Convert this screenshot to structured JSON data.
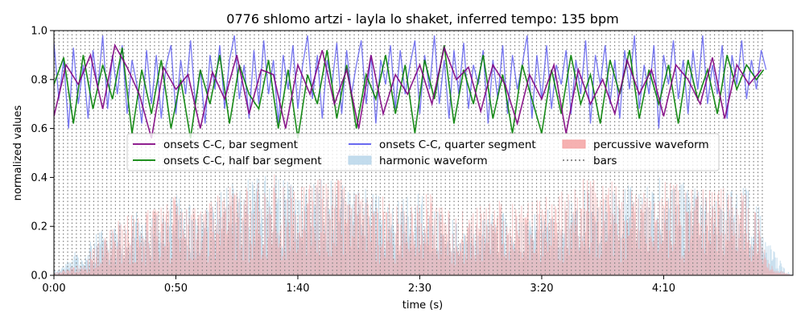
{
  "chart_data": {
    "type": "area",
    "title": "0776 shlomo artzi - layla lo shaket, inferred tempo: 135 bpm",
    "xlabel": "time (s)",
    "ylabel": "normalized values",
    "xlim": [
      0,
      303
    ],
    "ylim": [
      0,
      1.0
    ],
    "x_ticks": [
      0,
      50,
      100,
      150,
      200,
      250
    ],
    "x_tick_labels": [
      "0:00",
      "0:50",
      "1:40",
      "2:30",
      "3:20",
      "4:10"
    ],
    "y_ticks": [
      0.0,
      0.2,
      0.4,
      0.6,
      0.8,
      1.0
    ],
    "y_tick_labels": [
      "0.0",
      "0.2",
      "0.4",
      "0.6",
      "0.8",
      "1.0"
    ],
    "tempo_bpm": 135,
    "bar_duration_s": 1.78,
    "bars_range_s": [
      0.3,
      291.5
    ],
    "grid": false,
    "legend_position": "center",
    "legend": [
      {
        "label": "onsets C-C, bar segment",
        "kind": "line",
        "color": "#800080"
      },
      {
        "label": "onsets C-C, half bar segment",
        "kind": "line",
        "color": "#008000"
      },
      {
        "label": "onsets C-C, quarter segment",
        "kind": "line",
        "color": "#5555ee"
      },
      {
        "label": "harmonic waveform",
        "kind": "patch",
        "color": "#b8d6ea"
      },
      {
        "label": "percussive waveform",
        "kind": "patch",
        "color": "#f4a3a3"
      },
      {
        "label": "bars",
        "kind": "dotted",
        "color": "#808080"
      }
    ],
    "series": [
      {
        "name": "onsets C-C, bar segment",
        "color": "#800080",
        "x": [
          0,
          5,
          10,
          15,
          20,
          25,
          30,
          35,
          40,
          45,
          50,
          55,
          60,
          65,
          70,
          75,
          80,
          85,
          90,
          95,
          100,
          105,
          110,
          115,
          120,
          125,
          130,
          135,
          140,
          145,
          150,
          155,
          160,
          165,
          170,
          175,
          180,
          185,
          190,
          195,
          200,
          205,
          210,
          215,
          220,
          225,
          230,
          235,
          240,
          245,
          250,
          255,
          260,
          265,
          270,
          275,
          280,
          285,
          290
        ],
        "values": [
          0.65,
          0.86,
          0.78,
          0.9,
          0.68,
          0.94,
          0.85,
          0.74,
          0.56,
          0.85,
          0.76,
          0.82,
          0.6,
          0.83,
          0.72,
          0.9,
          0.66,
          0.84,
          0.82,
          0.6,
          0.86,
          0.74,
          0.92,
          0.7,
          0.84,
          0.6,
          0.9,
          0.66,
          0.82,
          0.74,
          0.86,
          0.7,
          0.93,
          0.8,
          0.85,
          0.67,
          0.86,
          0.78,
          0.62,
          0.82,
          0.72,
          0.86,
          0.58,
          0.84,
          0.7,
          0.8,
          0.66,
          0.88,
          0.74,
          0.84,
          0.65,
          0.86,
          0.8,
          0.7,
          0.89,
          0.64,
          0.86,
          0.78,
          0.84
        ]
      },
      {
        "name": "onsets C-C, half bar segment",
        "color": "#008000",
        "x": [
          0,
          4,
          8,
          12,
          16,
          20,
          24,
          28,
          32,
          36,
          40,
          44,
          48,
          52,
          56,
          60,
          64,
          68,
          72,
          76,
          80,
          84,
          88,
          92,
          96,
          100,
          104,
          108,
          112,
          116,
          120,
          124,
          128,
          132,
          136,
          140,
          144,
          148,
          152,
          156,
          160,
          164,
          168,
          172,
          176,
          180,
          184,
          188,
          192,
          196,
          200,
          204,
          208,
          212,
          216,
          220,
          224,
          228,
          232,
          236,
          240,
          244,
          248,
          252,
          256,
          260,
          264,
          268,
          272,
          276,
          280,
          284,
          288,
          291
        ],
        "values": [
          0.78,
          0.89,
          0.62,
          0.9,
          0.68,
          0.86,
          0.72,
          0.93,
          0.58,
          0.84,
          0.66,
          0.88,
          0.6,
          0.8,
          0.56,
          0.84,
          0.7,
          0.9,
          0.62,
          0.86,
          0.74,
          0.68,
          0.88,
          0.6,
          0.84,
          0.56,
          0.82,
          0.7,
          0.92,
          0.64,
          0.86,
          0.6,
          0.82,
          0.72,
          0.9,
          0.66,
          0.86,
          0.58,
          0.88,
          0.72,
          0.94,
          0.62,
          0.84,
          0.7,
          0.9,
          0.64,
          0.82,
          0.58,
          0.86,
          0.72,
          0.58,
          0.84,
          0.66,
          0.9,
          0.7,
          0.82,
          0.62,
          0.88,
          0.74,
          0.92,
          0.64,
          0.84,
          0.7,
          0.86,
          0.62,
          0.88,
          0.72,
          0.84,
          0.66,
          0.9,
          0.76,
          0.86,
          0.8,
          0.84
        ]
      },
      {
        "name": "onsets C-C, quarter segment",
        "color": "#5555ee",
        "x": [
          0,
          2,
          4,
          6,
          8,
          10,
          12,
          14,
          16,
          18,
          20,
          22,
          24,
          26,
          28,
          30,
          32,
          34,
          36,
          38,
          40,
          42,
          44,
          46,
          48,
          50,
          52,
          54,
          56,
          58,
          60,
          62,
          64,
          66,
          68,
          70,
          72,
          74,
          76,
          78,
          80,
          82,
          84,
          86,
          88,
          90,
          92,
          94,
          96,
          98,
          100,
          102,
          104,
          106,
          108,
          110,
          112,
          114,
          116,
          118,
          120,
          122,
          124,
          126,
          128,
          130,
          132,
          134,
          136,
          138,
          140,
          142,
          144,
          146,
          148,
          150,
          152,
          154,
          156,
          158,
          160,
          162,
          164,
          166,
          168,
          170,
          172,
          174,
          176,
          178,
          180,
          182,
          184,
          186,
          188,
          190,
          192,
          194,
          196,
          198,
          200,
          202,
          204,
          206,
          208,
          210,
          212,
          214,
          216,
          218,
          220,
          222,
          224,
          226,
          228,
          230,
          232,
          234,
          236,
          238,
          240,
          242,
          244,
          246,
          248,
          250,
          252,
          254,
          256,
          258,
          260,
          262,
          264,
          266,
          268,
          270,
          272,
          274,
          276,
          278,
          280,
          282,
          284,
          286,
          288,
          290,
          292
        ],
        "values": [
          0.95,
          0.72,
          0.88,
          0.6,
          0.93,
          0.7,
          0.86,
          0.64,
          0.92,
          0.76,
          0.98,
          0.68,
          0.9,
          0.74,
          0.94,
          0.66,
          0.88,
          0.78,
          0.62,
          0.92,
          0.7,
          0.9,
          0.64,
          0.86,
          0.94,
          0.66,
          0.88,
          0.74,
          0.96,
          0.7,
          0.84,
          0.62,
          0.9,
          0.76,
          0.94,
          0.68,
          0.88,
          0.98,
          0.72,
          0.86,
          0.64,
          0.92,
          0.7,
          0.96,
          0.74,
          0.88,
          0.62,
          0.9,
          0.76,
          0.94,
          0.68,
          0.86,
          0.98,
          0.72,
          0.9,
          0.64,
          0.88,
          0.78,
          0.95,
          0.66,
          0.92,
          0.74,
          0.86,
          0.96,
          0.7,
          0.9,
          0.62,
          0.88,
          0.78,
          0.94,
          0.68,
          0.92,
          0.74,
          0.86,
          0.96,
          0.66,
          0.9,
          0.76,
          0.98,
          0.7,
          0.88,
          0.64,
          0.92,
          0.74,
          0.95,
          0.68,
          0.86,
          0.78,
          0.92,
          0.62,
          0.88,
          0.72,
          0.94,
          0.66,
          0.9,
          0.76,
          0.86,
          0.98,
          0.64,
          0.9,
          0.72,
          0.94,
          0.68,
          0.86,
          0.78,
          0.92,
          0.66,
          0.88,
          0.74,
          0.96,
          0.62,
          0.9,
          0.78,
          0.94,
          0.7,
          0.88,
          0.64,
          0.92,
          0.76,
          0.98,
          0.68,
          0.86,
          0.74,
          0.94,
          0.6,
          0.9,
          0.78,
          0.96,
          0.72,
          0.88,
          0.66,
          0.92,
          0.76,
          0.98,
          0.7,
          0.86,
          0.74,
          0.94,
          0.64,
          0.9,
          0.78,
          0.96,
          0.72,
          0.88,
          0.76,
          0.92,
          0.84
        ]
      },
      {
        "name": "harmonic waveform",
        "color": "#b8d6ea",
        "x": [
          0,
          3,
          6,
          8,
          10,
          13,
          15,
          20,
          30,
          40,
          50,
          60,
          70,
          80,
          90,
          100,
          110,
          120,
          130,
          140,
          150,
          160,
          170,
          180,
          190,
          200,
          210,
          220,
          230,
          240,
          250,
          260,
          270,
          280,
          285,
          288,
          292,
          295,
          298,
          300,
          303
        ],
        "values": [
          0.02,
          0.03,
          0.06,
          0.09,
          0.08,
          0.07,
          0.14,
          0.18,
          0.22,
          0.26,
          0.3,
          0.24,
          0.34,
          0.36,
          0.4,
          0.33,
          0.36,
          0.34,
          0.32,
          0.28,
          0.31,
          0.22,
          0.2,
          0.26,
          0.21,
          0.24,
          0.28,
          0.34,
          0.32,
          0.35,
          0.37,
          0.34,
          0.3,
          0.32,
          0.34,
          0.3,
          0.14,
          0.09,
          0.05,
          0.02,
          0.0
        ]
      },
      {
        "name": "percussive waveform",
        "color": "#f4a3a3",
        "x": [
          0,
          3,
          6,
          8,
          10,
          13,
          15,
          20,
          30,
          40,
          50,
          60,
          70,
          80,
          90,
          100,
          110,
          120,
          130,
          140,
          150,
          160,
          170,
          180,
          190,
          200,
          210,
          220,
          230,
          240,
          250,
          260,
          270,
          280,
          285,
          288,
          292,
          295,
          298,
          300,
          303
        ],
        "values": [
          0.01,
          0.02,
          0.03,
          0.05,
          0.04,
          0.04,
          0.1,
          0.18,
          0.24,
          0.26,
          0.31,
          0.26,
          0.36,
          0.35,
          0.41,
          0.34,
          0.38,
          0.4,
          0.3,
          0.32,
          0.36,
          0.26,
          0.27,
          0.32,
          0.28,
          0.3,
          0.34,
          0.4,
          0.36,
          0.33,
          0.38,
          0.34,
          0.36,
          0.33,
          0.31,
          0.3,
          0.06,
          0.03,
          0.02,
          0.01,
          0.0
        ]
      }
    ]
  }
}
